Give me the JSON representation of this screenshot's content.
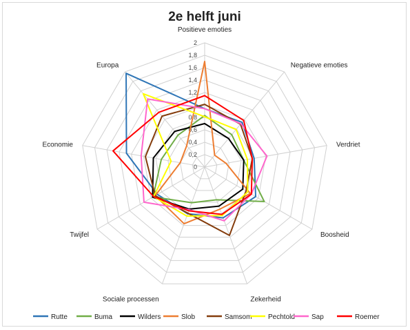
{
  "chart_data": {
    "type": "radar",
    "title": "2e helft juni",
    "axes": [
      "Positieve emoties",
      "Negatieve emoties",
      "Verdriet",
      "Boosheid",
      "Zekerheid",
      "Sociale processen",
      "Twijfel",
      "Economie",
      "Europa"
    ],
    "rlim": [
      0,
      2
    ],
    "ticks": [
      "0",
      "0,2",
      "0,4",
      "0,6",
      "0,8",
      "1",
      "1,2",
      "1,4",
      "1,6",
      "1,8",
      "2"
    ],
    "grid": true,
    "legend_position": "bottom",
    "series": [
      {
        "name": "Rutte",
        "color": "#2e75b6",
        "values": [
          0.94,
          0.94,
          0.81,
          0.95,
          0.87,
          0.8,
          0.88,
          1.28,
          1.97
        ]
      },
      {
        "name": "Buma",
        "color": "#70ad47",
        "values": [
          0.83,
          0.68,
          0.64,
          1.11,
          0.56,
          0.61,
          0.96,
          0.71,
          0.67
        ]
      },
      {
        "name": "Wilders",
        "color": "#000000",
        "values": [
          0.7,
          0.6,
          0.64,
          0.71,
          0.67,
          0.72,
          0.97,
          0.84,
          0.75
        ]
      },
      {
        "name": "Slob",
        "color": "#ed7d31",
        "values": [
          1.7,
          0.25,
          0.35,
          0.85,
          0.72,
          0.97,
          0.92,
          0.4,
          0.45
        ]
      },
      {
        "name": "Samsom",
        "color": "#843c0c",
        "values": [
          1.01,
          0.9,
          0.78,
          0.77,
          1.17,
          0.79,
          0.92,
          0.97,
          1.07
        ]
      },
      {
        "name": "Pechtold",
        "color": "#ffff00",
        "values": [
          0.81,
          0.79,
          0.7,
          0.8,
          0.83,
          0.84,
          0.95,
          0.55,
          1.54
        ]
      },
      {
        "name": "Sap",
        "color": "#ff66cc",
        "values": [
          0.94,
          0.91,
          1.02,
          0.87,
          0.92,
          0.73,
          1.13,
          1.04,
          1.43
        ]
      },
      {
        "name": "Roemer",
        "color": "#ff0000",
        "values": [
          1.15,
          0.98,
          0.78,
          0.87,
          0.81,
          0.75,
          0.95,
          1.5,
          1.15
        ]
      }
    ]
  }
}
